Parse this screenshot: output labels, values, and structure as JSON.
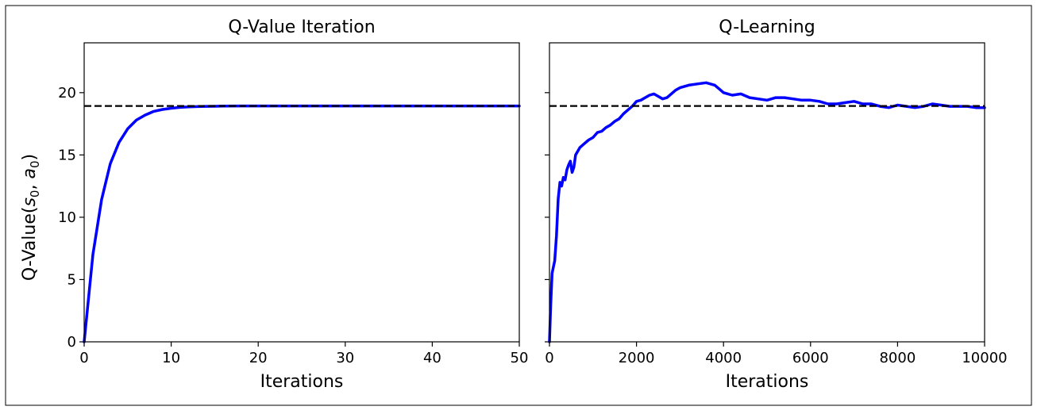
{
  "chart_data": [
    {
      "type": "line",
      "title": "Q-Value Iteration",
      "xlabel": "Iterations",
      "ylabel": "Q-Value(s₀, a₀)",
      "ylabel_parts": {
        "prefix": "Q-Value(",
        "s": "s",
        "s_sub": "0",
        "sep": ", ",
        "a": "a",
        "a_sub": "0",
        "suffix": ")"
      },
      "xlim": [
        0,
        50
      ],
      "ylim": [
        0,
        24
      ],
      "xticks": [
        0,
        10,
        20,
        30,
        40,
        50
      ],
      "yticks": [
        0,
        5,
        10,
        15,
        20
      ],
      "grid": false,
      "series": [
        {
          "color": "#0000ff",
          "style": "solid",
          "x": [
            0,
            1,
            2,
            3,
            4,
            5,
            6,
            7,
            8,
            9,
            10,
            11,
            12,
            13,
            14,
            15,
            16,
            18,
            20,
            25,
            30,
            35,
            40,
            45,
            50
          ],
          "y": [
            0,
            7.0,
            11.4,
            14.3,
            16.0,
            17.1,
            17.8,
            18.2,
            18.5,
            18.65,
            18.75,
            18.82,
            18.86,
            18.88,
            18.9,
            18.91,
            18.92,
            18.93,
            18.93,
            18.93,
            18.93,
            18.93,
            18.93,
            18.93,
            18.93
          ]
        }
      ],
      "reference_line": {
        "y": 18.93,
        "color": "#000000",
        "style": "dashed"
      }
    },
    {
      "type": "line",
      "title": "Q-Learning",
      "xlabel": "Iterations",
      "ylabel": "",
      "xlim": [
        0,
        10000
      ],
      "ylim": [
        0,
        24
      ],
      "xticks": [
        0,
        2000,
        4000,
        6000,
        8000,
        10000
      ],
      "yticks": [
        0,
        5,
        10,
        15,
        20
      ],
      "ytick_labels_visible": false,
      "grid": false,
      "series": [
        {
          "color": "#0000ff",
          "style": "solid",
          "x": [
            0,
            30,
            60,
            90,
            120,
            160,
            200,
            240,
            280,
            320,
            360,
            400,
            440,
            480,
            520,
            560,
            600,
            700,
            800,
            900,
            1000,
            1100,
            1200,
            1300,
            1400,
            1500,
            1600,
            1700,
            1800,
            1900,
            2000,
            2100,
            2200,
            2300,
            2400,
            2500,
            2600,
            2700,
            2800,
            2900,
            3000,
            3200,
            3400,
            3600,
            3800,
            3900,
            4000,
            4100,
            4200,
            4400,
            4600,
            4800,
            5000,
            5200,
            5400,
            5600,
            5800,
            6000,
            6200,
            6400,
            6600,
            6800,
            7000,
            7200,
            7400,
            7600,
            7800,
            8000,
            8200,
            8400,
            8600,
            8800,
            9000,
            9200,
            9400,
            9600,
            9800,
            10000
          ],
          "y": [
            0,
            3.0,
            5.5,
            6.0,
            6.5,
            8.5,
            11.5,
            12.8,
            12.5,
            13.2,
            13.0,
            13.8,
            14.2,
            14.5,
            13.6,
            14.0,
            15.0,
            15.6,
            15.9,
            16.2,
            16.4,
            16.8,
            16.9,
            17.2,
            17.4,
            17.7,
            17.9,
            18.3,
            18.6,
            18.9,
            19.3,
            19.4,
            19.6,
            19.8,
            19.9,
            19.7,
            19.5,
            19.6,
            19.9,
            20.2,
            20.4,
            20.6,
            20.7,
            20.8,
            20.6,
            20.3,
            20.0,
            19.9,
            19.8,
            19.9,
            19.6,
            19.5,
            19.4,
            19.6,
            19.6,
            19.5,
            19.4,
            19.4,
            19.3,
            19.1,
            19.1,
            19.2,
            19.3,
            19.1,
            19.1,
            18.9,
            18.8,
            19.0,
            18.9,
            18.8,
            18.9,
            19.1,
            19.0,
            18.9,
            18.9,
            18.9,
            18.8,
            18.8
          ]
        }
      ],
      "reference_line": {
        "y": 18.93,
        "color": "#000000",
        "style": "dashed"
      }
    }
  ]
}
